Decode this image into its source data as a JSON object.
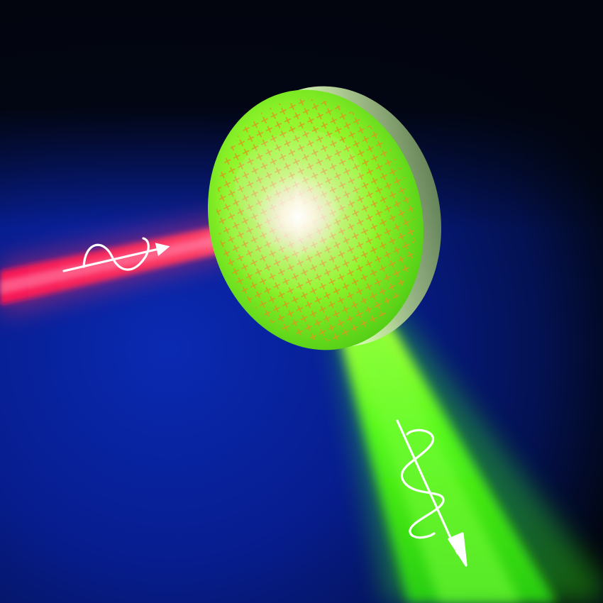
{
  "scene": {
    "subject": "metasurface-lens-wave-conversion",
    "elements": {
      "incident_beam": {
        "color": "#ff2f5a",
        "icon": "wave-polarization-icon"
      },
      "lens": {
        "color": "#8fff2a",
        "icon": "grid-pattern"
      },
      "output_beam": {
        "color": "#4cff14",
        "icon": "wave-polarization-icon"
      }
    },
    "colors": {
      "background_dark": "#020611",
      "background_blue": "#061c8a",
      "incident_beam": "#ff2f5a",
      "lens_body": "#8fff2a",
      "lens_grid": "#d79a20",
      "output_beam": "#4cff14",
      "wave_symbol": "#ffffff"
    }
  }
}
